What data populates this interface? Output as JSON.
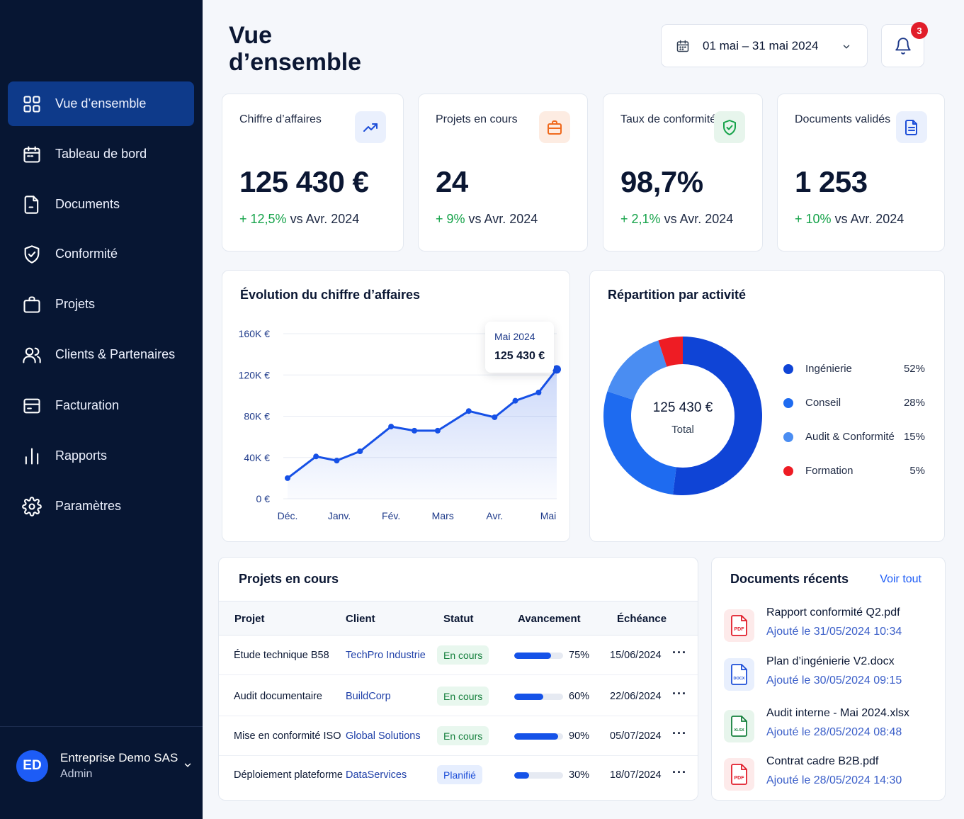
{
  "nav": {
    "items": [
      {
        "label": "Vue d’ensemble",
        "icon": "grid-icon",
        "active": true
      },
      {
        "label": "Tableau de bord",
        "icon": "calendar-icon"
      },
      {
        "label": "Documents",
        "icon": "document-icon"
      },
      {
        "label": "Conformité",
        "icon": "shield-check-icon"
      },
      {
        "label": "Projets",
        "icon": "briefcase-icon"
      },
      {
        "label": "Clients & Partenaires",
        "icon": "users-icon"
      },
      {
        "label": "Facturation",
        "icon": "card-icon"
      },
      {
        "label": "Rapports",
        "icon": "bar-chart-icon"
      },
      {
        "label": "Paramètres",
        "icon": "gear-icon"
      }
    ]
  },
  "user": {
    "initials": "ED",
    "name": "Entreprise Demo SAS",
    "role": "Admin"
  },
  "header": {
    "title": "Vue d’ensemble",
    "date_range": "01 mai – 31 mai 2024",
    "notifications": "3"
  },
  "kpis": [
    {
      "label": "Chiffre d’affaires",
      "value": "125 430 €",
      "delta": "+ 12,5%",
      "compare": "vs Avr. 2024",
      "icon": "trending-up-icon",
      "color": "#1d4ed8",
      "bg": "#eaf0fd"
    },
    {
      "label": "Projets en cours",
      "value": "24",
      "delta": "+ 9%",
      "compare": "vs Avr. 2024",
      "icon": "briefcase-icon",
      "color": "#f06a1d",
      "bg": "#fdece2"
    },
    {
      "label": "Taux de conformité",
      "value": "98,7%",
      "delta": "+ 2,1%",
      "compare": "vs Avr. 2024",
      "icon": "shield-check-icon",
      "color": "#16a34a",
      "bg": "#e7f5ec"
    },
    {
      "label": "Documents validés",
      "value": "1 253",
      "delta": "+ 10%",
      "compare": "vs Avr. 2024",
      "icon": "document-icon",
      "color": "#1d4ed8",
      "bg": "#eaf0fd"
    }
  ],
  "revenue_chart": {
    "title": "Évolution du chiffre d’affaires",
    "tooltip": {
      "label": "Mai 2024",
      "value": "125 430 €"
    }
  },
  "donut": {
    "title": "Répartition par activité",
    "center_value": "125 430 €",
    "center_label": "Total"
  },
  "chart_data": [
    {
      "type": "area",
      "title": "Évolution du chiffre d’affaires",
      "x_ticks": [
        "Déc.",
        "Janv.",
        "Févr.",
        "Mars",
        "Avr.",
        "Mai"
      ],
      "x_tick_labels": [
        "Déc.",
        "Janv.",
        "Fév.",
        "Mars",
        "Avr.",
        "Mai"
      ],
      "y_ticks": [
        "0 €",
        "40K €",
        "80K €",
        "120K €",
        "160K €"
      ],
      "ylim": [
        0,
        160000
      ],
      "x": [
        0,
        0.55,
        0.95,
        1.4,
        2.0,
        2.45,
        2.9,
        3.5,
        4.0,
        4.4,
        4.85,
        5.2
      ],
      "values": [
        20000,
        41000,
        37000,
        46000,
        70000,
        66000,
        66000,
        85000,
        79000,
        95000,
        103000,
        125430
      ],
      "grid": true,
      "color": "#1650e6"
    },
    {
      "type": "pie",
      "title": "Répartition par activité",
      "categories": [
        "Ingénierie",
        "Conseil",
        "Audit & Conformité",
        "Formation"
      ],
      "values": [
        52,
        28,
        15,
        5
      ],
      "labels": [
        "52%",
        "28%",
        "15%",
        "5%"
      ],
      "colors": [
        "#0f44d6",
        "#1e6bf0",
        "#4a8df2",
        "#ee1c24"
      ],
      "legend": "right"
    }
  ],
  "projects": {
    "title": "Projets en cours",
    "columns": [
      "Projet",
      "Client",
      "Statut",
      "Avancement",
      "Échéance"
    ],
    "rows": [
      {
        "project": "Étude technique B58",
        "client": "TechPro Industrie",
        "status": "En cours",
        "status_type": "green",
        "progress": 75,
        "progress_label": "75%",
        "due": "15/06/2024"
      },
      {
        "project": "Audit documentaire",
        "client": "BuildCorp",
        "status": "En cours",
        "status_type": "green",
        "progress": 60,
        "progress_label": "60%",
        "due": "22/06/2024"
      },
      {
        "project": "Mise en conformité ISO",
        "client": "Global Solutions",
        "status": "En cours",
        "status_type": "green",
        "progress": 90,
        "progress_label": "90%",
        "due": "05/07/2024"
      },
      {
        "project": "Déploiement plateforme",
        "client": "DataServices",
        "status": "Planifié",
        "status_type": "blue",
        "progress": 30,
        "progress_label": "30%",
        "due": "18/07/2024"
      }
    ],
    "more_label": "···"
  },
  "documents": {
    "title": "Documents récents",
    "see_all": "Voir tout",
    "items": [
      {
        "name": "Rapport conformité Q2.pdf",
        "date": "Ajouté le 31/05/2024 10:34",
        "type": "PDF",
        "icon": "pdf-file-icon",
        "color": "#e11d2a",
        "bg": "#fdeaea"
      },
      {
        "name": "Plan d’ingénierie V2.docx",
        "date": "Ajouté le 30/05/2024 09:15",
        "type": "DOCX",
        "icon": "docx-file-icon",
        "color": "#1d4ed8",
        "bg": "#e8effd"
      },
      {
        "name": "Audit interne - Mai 2024.xlsx",
        "date": "Ajouté le 28/05/2024 08:48",
        "type": "XLSX",
        "icon": "xlsx-file-icon",
        "color": "#15803d",
        "bg": "#e7f5ec"
      },
      {
        "name": "Contrat cadre B2B.pdf",
        "date": "Ajouté le 28/05/2024 14:30",
        "type": "PDF",
        "icon": "pdf-file-icon",
        "color": "#e11d2a",
        "bg": "#fdeaea"
      }
    ]
  }
}
